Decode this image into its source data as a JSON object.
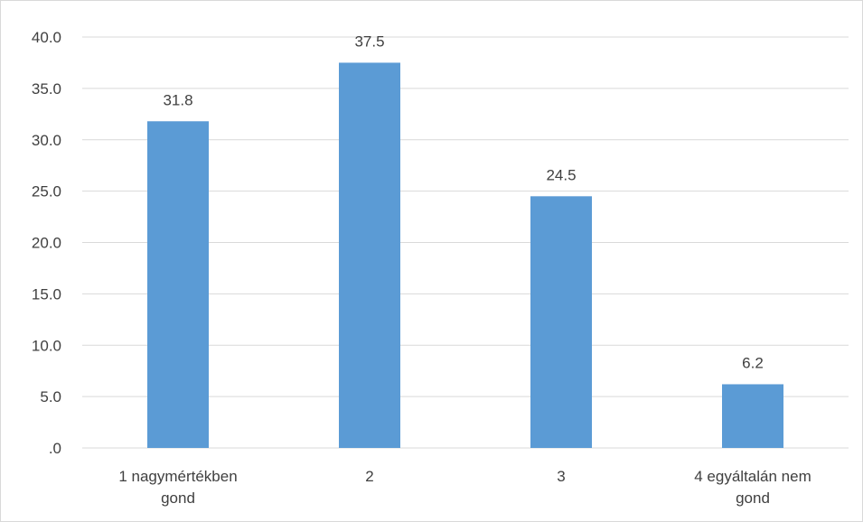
{
  "chart_data": {
    "type": "bar",
    "categories": [
      [
        "1 nagymértékben",
        "gond"
      ],
      [
        "2"
      ],
      [
        "3"
      ],
      [
        "4 egyáltalán nem",
        "gond"
      ]
    ],
    "values": [
      31.8,
      37.5,
      24.5,
      6.2
    ],
    "data_labels": [
      "31.8",
      "37.5",
      "24.5",
      "6.2"
    ],
    "ylim": [
      0,
      40
    ],
    "yticks": [
      ".0",
      "5.0",
      "10.0",
      "15.0",
      "20.0",
      "25.0",
      "30.0",
      "35.0",
      "40.0"
    ],
    "bar_color": "#5b9bd5",
    "grid": true,
    "legend": "none",
    "title": "",
    "xlabel": "",
    "ylabel": ""
  }
}
